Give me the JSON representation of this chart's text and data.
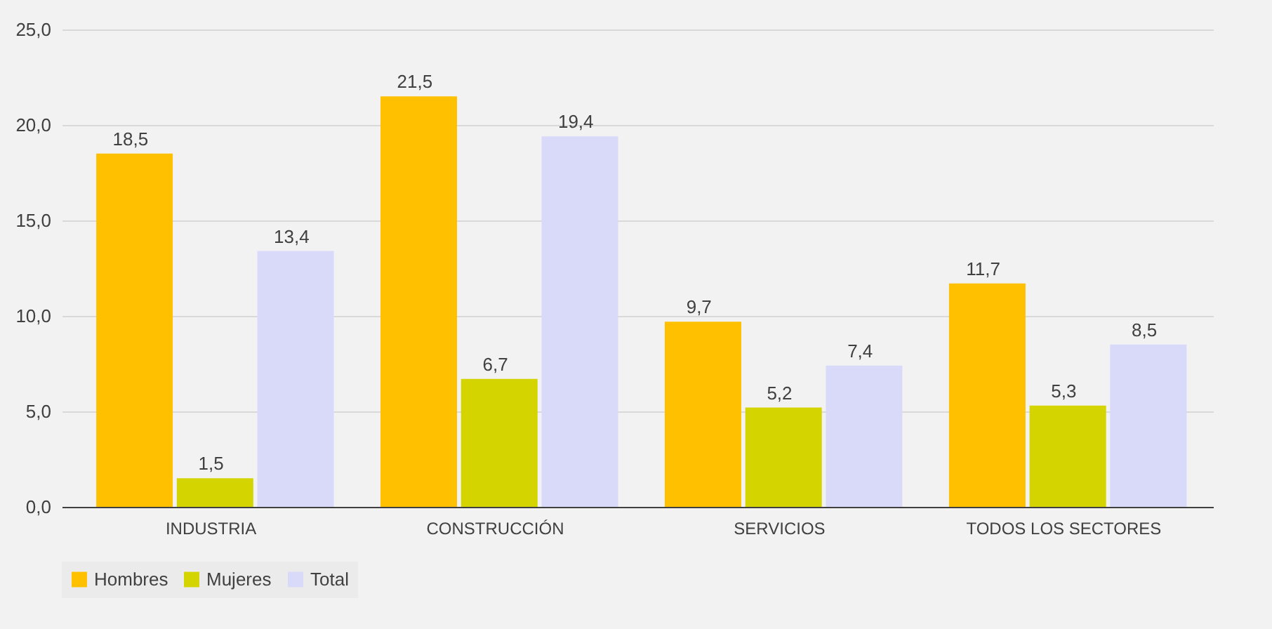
{
  "chart_data": {
    "type": "bar",
    "categories": [
      "INDUSTRIA",
      "CONSTRUCCIÓN",
      "SERVICIOS",
      "TODOS LOS SECTORES"
    ],
    "series": [
      {
        "name": "Hombres",
        "color": "#ffc000",
        "values": [
          18.5,
          21.5,
          9.7,
          11.7
        ],
        "value_labels": [
          "18,5",
          "21,5",
          "9,7",
          "11,7"
        ]
      },
      {
        "name": "Mujeres",
        "color": "#d4d400",
        "values": [
          1.5,
          6.7,
          5.2,
          5.3
        ],
        "value_labels": [
          "1,5",
          "6,7",
          "5,2",
          "5,3"
        ]
      },
      {
        "name": "Total",
        "color": "#d9d9fa",
        "values": [
          13.4,
          19.4,
          7.4,
          8.5
        ],
        "value_labels": [
          "13,4",
          "19,4",
          "7,4",
          "8,5"
        ]
      }
    ],
    "ylim": [
      0,
      25
    ],
    "yticks": [
      {
        "value": 0,
        "label": "0,0"
      },
      {
        "value": 5,
        "label": "5,0"
      },
      {
        "value": 10,
        "label": "10,0"
      },
      {
        "value": 15,
        "label": "15,0"
      },
      {
        "value": 20,
        "label": "20,0"
      },
      {
        "value": 25,
        "label": "25,0"
      }
    ],
    "grid": "y",
    "legend": "bottom"
  }
}
